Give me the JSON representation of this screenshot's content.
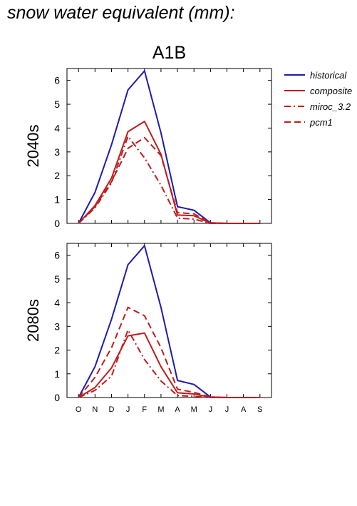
{
  "page": {
    "title": "snow water equivalent (mm):"
  },
  "chart_data": [
    {
      "type": "line",
      "title": "A1B",
      "ylabel": "2040s",
      "categories": [
        "O",
        "N",
        "D",
        "J",
        "F",
        "M",
        "A",
        "M",
        "J",
        "J",
        "A",
        "S"
      ],
      "ylim": [
        0,
        6.5
      ],
      "yticks": [
        0,
        1,
        2,
        3,
        4,
        5,
        6
      ],
      "legend": {
        "placement": "right"
      },
      "series": [
        {
          "name": "historical",
          "color": "#1c1cb0",
          "dash": "solid",
          "values": [
            0,
            1.3,
            3.3,
            5.6,
            6.4,
            3.8,
            0.7,
            0.55,
            0.02,
            0,
            0,
            0
          ]
        },
        {
          "name": "composite",
          "color": "#c01c1c",
          "dash": "solid",
          "values": [
            0,
            0.75,
            1.9,
            3.85,
            4.28,
            2.9,
            0.35,
            0.32,
            0.01,
            0,
            0,
            0
          ]
        },
        {
          "name": "miroc_3.2",
          "color": "#c01c1c",
          "dash": "dashdot",
          "values": [
            0,
            0.65,
            1.7,
            3.65,
            2.75,
            1.6,
            0.22,
            0.18,
            0,
            0,
            0,
            0
          ]
        },
        {
          "name": "pcm1",
          "color": "#c01c1c",
          "dash": "dash",
          "values": [
            0,
            0.7,
            1.75,
            3.15,
            3.6,
            2.85,
            0.45,
            0.4,
            0.02,
            0,
            0,
            0
          ]
        }
      ]
    },
    {
      "type": "line",
      "title": "",
      "ylabel": "2080s",
      "categories": [
        "O",
        "N",
        "D",
        "J",
        "F",
        "M",
        "A",
        "M",
        "J",
        "J",
        "A",
        "S"
      ],
      "ylim": [
        0,
        6.5
      ],
      "yticks": [
        0,
        1,
        2,
        3,
        4,
        5,
        6
      ],
      "series": [
        {
          "name": "historical",
          "color": "#1c1cb0",
          "dash": "solid",
          "values": [
            0,
            1.3,
            3.3,
            5.6,
            6.4,
            3.8,
            0.72,
            0.55,
            0.02,
            0,
            0,
            0
          ]
        },
        {
          "name": "composite",
          "color": "#c01c1c",
          "dash": "solid",
          "values": [
            0,
            0.42,
            1.25,
            2.6,
            2.72,
            1.3,
            0.2,
            0.15,
            0.01,
            0,
            0,
            0
          ]
        },
        {
          "name": "miroc_3.2",
          "color": "#c01c1c",
          "dash": "dashdot",
          "values": [
            0,
            0.3,
            0.9,
            2.85,
            1.6,
            0.7,
            0.08,
            0.05,
            0,
            0,
            0,
            0
          ]
        },
        {
          "name": "pcm1",
          "color": "#c01c1c",
          "dash": "dash",
          "values": [
            0,
            0.85,
            2.1,
            3.8,
            3.45,
            2.1,
            0.35,
            0.22,
            0.02,
            0,
            0,
            0
          ]
        }
      ]
    }
  ]
}
